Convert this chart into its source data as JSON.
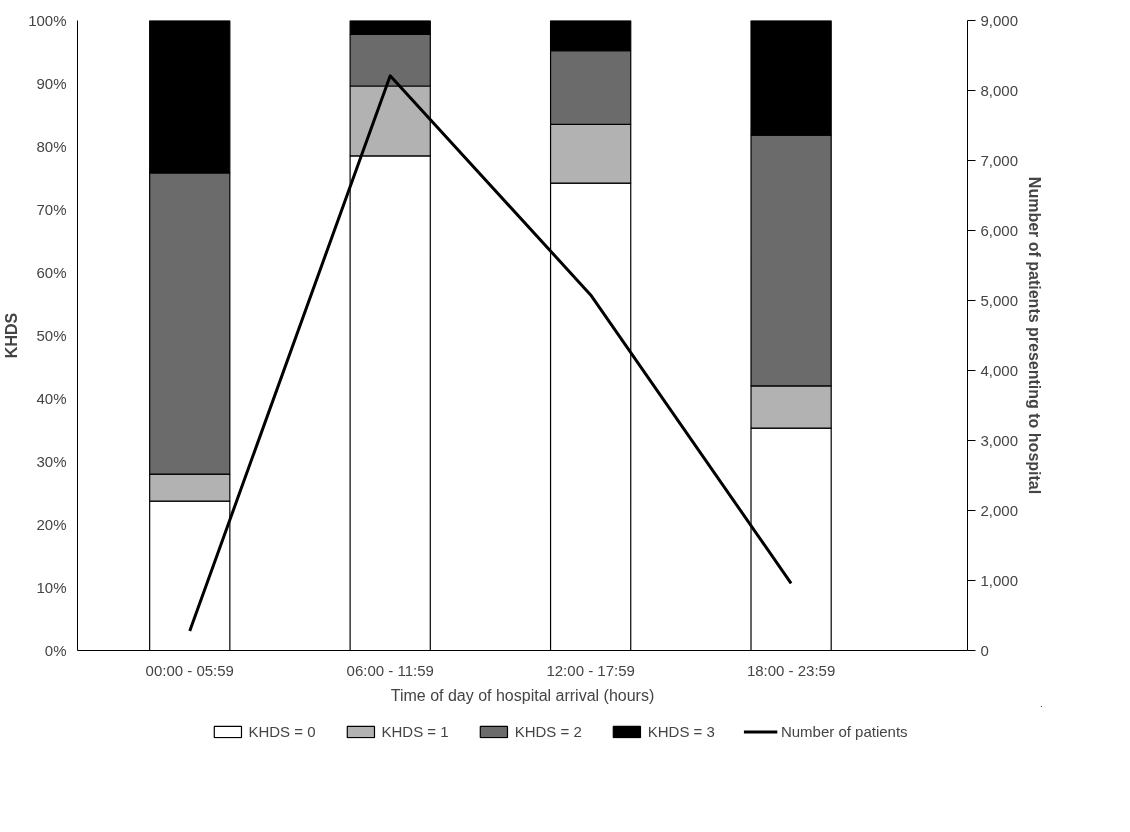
{
  "chart_data": {
    "type": "bar",
    "stacked": true,
    "xlabel": "Time of day of hospital arrival (hours)",
    "ylabel": "KHDS",
    "y2label": "Number of patients presenting to hospital",
    "categories": [
      "00:00 - 05:59",
      "06:00 - 11:59",
      "12:00 - 17:59",
      "18:00 - 23:59"
    ],
    "series": [
      {
        "name": "KHDS = 0",
        "color": "#ffffff",
        "values": [
          23.7,
          78.5,
          74.2,
          35.3
        ]
      },
      {
        "name": "KHDS = 1",
        "color": "#b2b2b2",
        "values": [
          4.3,
          11.1,
          9.3,
          6.7
        ]
      },
      {
        "name": "KHDS = 2",
        "color": "#6b6b6b",
        "values": [
          47.8,
          8.2,
          11.7,
          39.8
        ]
      },
      {
        "name": "KHDS = 3",
        "color": "#000000",
        "values": [
          24.2,
          2.2,
          4.8,
          18.2
        ]
      },
      {
        "name": "Number of patients",
        "type": "line",
        "axis": "y2",
        "color": "#000000",
        "values": [
          280,
          8210,
          5080,
          960
        ]
      }
    ],
    "ylim": [
      0,
      100
    ],
    "yticks": [
      {
        "value": 0,
        "label": "0%"
      },
      {
        "value": 10,
        "label": "10%"
      },
      {
        "value": 20,
        "label": "20%"
      },
      {
        "value": 30,
        "label": "30%"
      },
      {
        "value": 40,
        "label": "40%"
      },
      {
        "value": 50,
        "label": "50%"
      },
      {
        "value": 60,
        "label": "60%"
      },
      {
        "value": 70,
        "label": "70%"
      },
      {
        "value": 80,
        "label": "80%"
      },
      {
        "value": 90,
        "label": "90%"
      },
      {
        "value": 100,
        "label": "100%"
      }
    ],
    "y2lim": [
      0,
      9000
    ],
    "y2ticks": [
      0,
      {
        "value": 1000,
        "label": "1,000"
      },
      {
        "value": 2000,
        "label": "2,000"
      },
      {
        "value": 3000,
        "label": "3,000"
      },
      {
        "value": 4000,
        "label": "4,000"
      },
      {
        "value": 5000,
        "label": "5,000"
      },
      {
        "value": 6000,
        "label": "6,000"
      },
      {
        "value": 7000,
        "label": "7,000"
      },
      {
        "value": 8000,
        "label": "8,000"
      },
      {
        "value": 9000,
        "label": "9,000"
      }
    ],
    "grid": false,
    "legend": "bottom",
    "line_style": "solid",
    "marker": "none"
  }
}
